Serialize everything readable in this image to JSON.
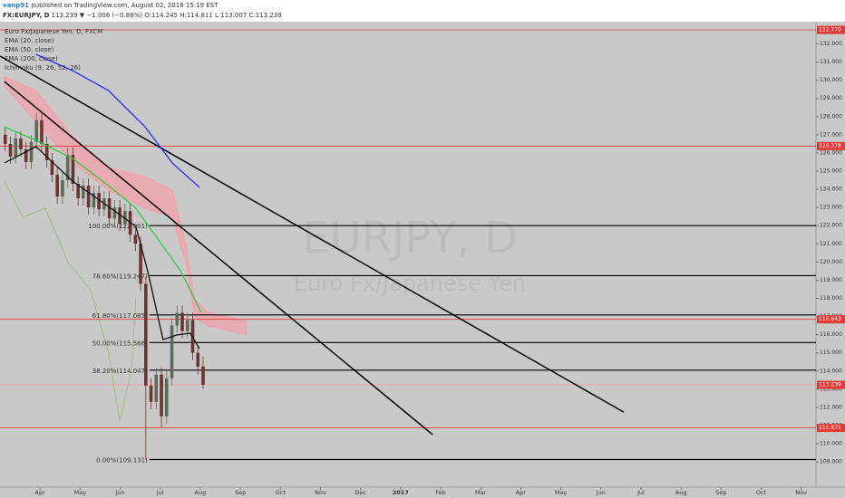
{
  "chart_data": {
    "type": "candlestick",
    "header": {
      "author": "vanp91",
      "published": " published on TradingView.com, August 02, 2016 15:19 EST",
      "symbol": "FX:EURJPY, D",
      "quote": " 113.239 ▼ −1.006 (−0.88%) O:114.245 H:114.811 L:113.007 C:113.239"
    },
    "title": "Euro Fx/Japanese Yen, D, FXCM",
    "watermark": "EURJPY, D",
    "watermark_sub": "Euro Fx/Japanese Yen",
    "up_color": "#5b6b5b",
    "down_color": "#6e3434",
    "x": [
      3.13,
      3.26,
      3.39,
      3.52,
      3.65,
      3.78,
      3.91,
      4.04,
      4.17,
      4.3,
      4.43,
      4.56,
      4.69,
      4.82,
      4.95,
      5.08,
      5.21,
      5.34,
      5.47,
      5.6,
      5.73,
      5.86,
      5.99,
      6.12,
      6.25,
      6.38,
      6.51,
      6.64,
      6.77,
      6.9,
      7.03,
      7.16,
      7.29,
      7.42,
      7.55,
      7.68,
      7.81,
      7.94,
      8.07
    ],
    "open": [
      127.0,
      126.5,
      125.8,
      126.8,
      126.2,
      125.5,
      126.6,
      127.8,
      126.5,
      125.6,
      124.8,
      123.6,
      124.5,
      125.9,
      124.3,
      123.5,
      124.2,
      123.0,
      123.8,
      122.9,
      123.5,
      122.4,
      123.0,
      122.1,
      122.8,
      121.5,
      121.0,
      118.8,
      113.2,
      112.3,
      113.8,
      111.5,
      113.6,
      116.5,
      117.2,
      116.2,
      116.8,
      115.0,
      114.245
    ],
    "high": [
      127.4,
      126.9,
      127.2,
      127.2,
      126.6,
      127.0,
      128.2,
      128.2,
      126.9,
      126.0,
      125.2,
      124.9,
      126.3,
      126.3,
      124.7,
      124.6,
      124.6,
      124.2,
      124.2,
      123.9,
      123.9,
      123.4,
      123.4,
      123.2,
      123.2,
      121.9,
      121.4,
      119.2,
      113.6,
      114.2,
      114.2,
      114.0,
      116.9,
      117.6,
      117.6,
      117.2,
      117.2,
      115.4,
      114.811
    ],
    "low": [
      126.1,
      125.4,
      125.4,
      125.8,
      125.1,
      125.1,
      126.2,
      126.1,
      125.2,
      124.4,
      123.2,
      123.2,
      124.1,
      123.9,
      123.1,
      123.1,
      122.6,
      122.6,
      122.5,
      122.5,
      122.0,
      122.0,
      121.7,
      121.7,
      121.1,
      120.6,
      118.4,
      109.131,
      111.9,
      111.9,
      110.9,
      111.1,
      113.2,
      116.1,
      115.8,
      115.8,
      114.6,
      113.8,
      113.007
    ],
    "close": [
      126.5,
      125.8,
      126.8,
      126.2,
      125.5,
      126.6,
      127.8,
      126.5,
      125.6,
      124.8,
      123.6,
      124.5,
      125.9,
      124.3,
      123.5,
      124.2,
      123.0,
      123.8,
      122.9,
      123.5,
      122.4,
      123.0,
      122.1,
      122.8,
      121.5,
      121.0,
      118.8,
      113.2,
      112.3,
      113.8,
      111.5,
      113.6,
      116.5,
      117.2,
      116.2,
      116.8,
      115.0,
      114.245,
      113.239
    ],
    "lines": [
      {
        "name": "EMA (20, close)",
        "color": "#111111",
        "x": [
          3.11,
          3.9,
          4.81,
          5.71,
          6.39,
          6.69,
          7.07,
          7.41,
          7.75,
          7.98
        ],
        "values": [
          125.45,
          126.35,
          124.45,
          123.05,
          121.96,
          119.47,
          115.73,
          115.98,
          116.08,
          115.23
        ]
      },
      {
        "name": "EMA (50, close)",
        "color": "#2ecc40",
        "x": [
          3.11,
          3.9,
          4.81,
          5.71,
          6.39,
          6.96,
          7.52,
          8.02
        ],
        "values": [
          127.44,
          126.69,
          125.7,
          124.2,
          122.96,
          121.21,
          119.47,
          117.23
        ]
      },
      {
        "name": "EMA (200, close)",
        "color": "#2a2aff",
        "x": [
          3.9,
          4.81,
          5.71,
          6.62,
          7.3,
          7.98
        ],
        "values": [
          131.42,
          130.53,
          129.43,
          127.44,
          125.45,
          124.1
        ]
      }
    ],
    "cloud": {
      "name": "Ichimoku (9, 26, 52, 26)",
      "color": "#f2a0a8",
      "x": [
        3.11,
        3.9,
        4.81,
        5.71,
        6.62,
        7.3,
        7.64,
        7.86,
        8.2,
        9.15
      ],
      "upper": [
        130.18,
        129.43,
        126.94,
        125.2,
        124.7,
        123.95,
        120.96,
        117.97,
        117.23,
        116.73
      ],
      "lower": [
        129.68,
        127.69,
        125.45,
        123.95,
        122.96,
        122.46,
        119.97,
        116.98,
        116.48,
        115.98
      ],
      "lagging_color": "#8fbf6a",
      "lagging_x": [
        3.11,
        3.57,
        4.13,
        4.7,
        5.26,
        5.71,
        5.99,
        6.28,
        6.39
      ],
      "lagging": [
        124.45,
        122.46,
        122.96,
        119.97,
        118.47,
        114.98,
        111.24,
        114.0,
        117.97
      ]
    },
    "trendlines": [
      {
        "color": "#000000",
        "x": [
          3.0,
          18.57
        ],
        "values": [
          131.33,
          111.74
        ]
      },
      {
        "color": "#000000",
        "x": [
          3.11,
          13.8
        ],
        "values": [
          129.93,
          110.5
        ]
      }
    ],
    "fib_x": 6.73,
    "fib_color": "#000000",
    "fib_levels": [
      {
        "value": 122.001,
        "label": "100.00%(122.001)"
      },
      {
        "value": 119.247,
        "label": "78.60%(119.247)"
      },
      {
        "value": 117.085,
        "label": "61.80%(117.085)"
      },
      {
        "value": 115.566,
        "label": "50.00%(115.566)"
      },
      {
        "value": 114.047,
        "label": "38.20%(114.047)"
      },
      {
        "value": 109.131,
        "label": "0.00%(109.131)"
      }
    ],
    "hlines": [
      {
        "value": 132.77,
        "label": "132.770",
        "color": "#e53935"
      },
      {
        "value": 126.378,
        "label": "126.378",
        "color": "#e53935"
      },
      {
        "value": 116.843,
        "label": "116.843",
        "color": "#e53935"
      },
      {
        "value": 113.239,
        "label": "113.239",
        "color": "#ef9a9a"
      },
      {
        "value": 110.871,
        "label": "110.871",
        "color": "#e53935"
      }
    ],
    "badge_color": "#e53935",
    "xlim": [
      3.0,
      23.37
    ],
    "ylim": [
      107.61,
      133.22
    ],
    "xticks": [
      {
        "value": 4,
        "label": "Apr"
      },
      {
        "value": 5,
        "label": "May"
      },
      {
        "value": 6,
        "label": "Jun"
      },
      {
        "value": 7,
        "label": "Jul"
      },
      {
        "value": 8,
        "label": "Aug"
      },
      {
        "value": 9,
        "label": "Sep"
      },
      {
        "value": 10,
        "label": "Oct"
      },
      {
        "value": 11,
        "label": "Nov"
      },
      {
        "value": 12,
        "label": "Dec"
      },
      {
        "value": 13,
        "label": "2017"
      },
      {
        "value": 14,
        "label": "Feb"
      },
      {
        "value": 15,
        "label": "Mar"
      },
      {
        "value": 16,
        "label": "Apr"
      },
      {
        "value": 17,
        "label": "May"
      },
      {
        "value": 18,
        "label": "Jun"
      },
      {
        "value": 19,
        "label": "Jul"
      },
      {
        "value": 20,
        "label": "Aug"
      },
      {
        "value": 21,
        "label": "Sep"
      },
      {
        "value": 22,
        "label": "Oct"
      },
      {
        "value": 23,
        "label": "Nov"
      }
    ],
    "yticks": [
      {
        "value": 109,
        "label": "109.000"
      },
      {
        "value": 110,
        "label": "110.000"
      },
      {
        "value": 111,
        "label": "111.000"
      },
      {
        "value": 112,
        "label": "112.000"
      },
      {
        "value": 113,
        "label": "113.000"
      },
      {
        "value": 114,
        "label": "114.000"
      },
      {
        "value": 115,
        "label": "115.000"
      },
      {
        "value": 116,
        "label": "116.000"
      },
      {
        "value": 117,
        "label": "117.000"
      },
      {
        "value": 118,
        "label": "118.000"
      },
      {
        "value": 119,
        "label": "119.000"
      },
      {
        "value": 120,
        "label": "120.000"
      },
      {
        "value": 121,
        "label": "121.000"
      },
      {
        "value": 122,
        "label": "122.000"
      },
      {
        "value": 123,
        "label": "123.000"
      },
      {
        "value": 124,
        "label": "124.000"
      },
      {
        "value": 125,
        "label": "125.000"
      },
      {
        "value": 126,
        "label": "126.000"
      },
      {
        "value": 127,
        "label": "127.000"
      },
      {
        "value": 128,
        "label": "128.000"
      },
      {
        "value": 129,
        "label": "129.000"
      },
      {
        "value": 130,
        "label": "130.000"
      },
      {
        "value": 131,
        "label": "131.000"
      },
      {
        "value": 132,
        "label": "132.000"
      }
    ]
  }
}
